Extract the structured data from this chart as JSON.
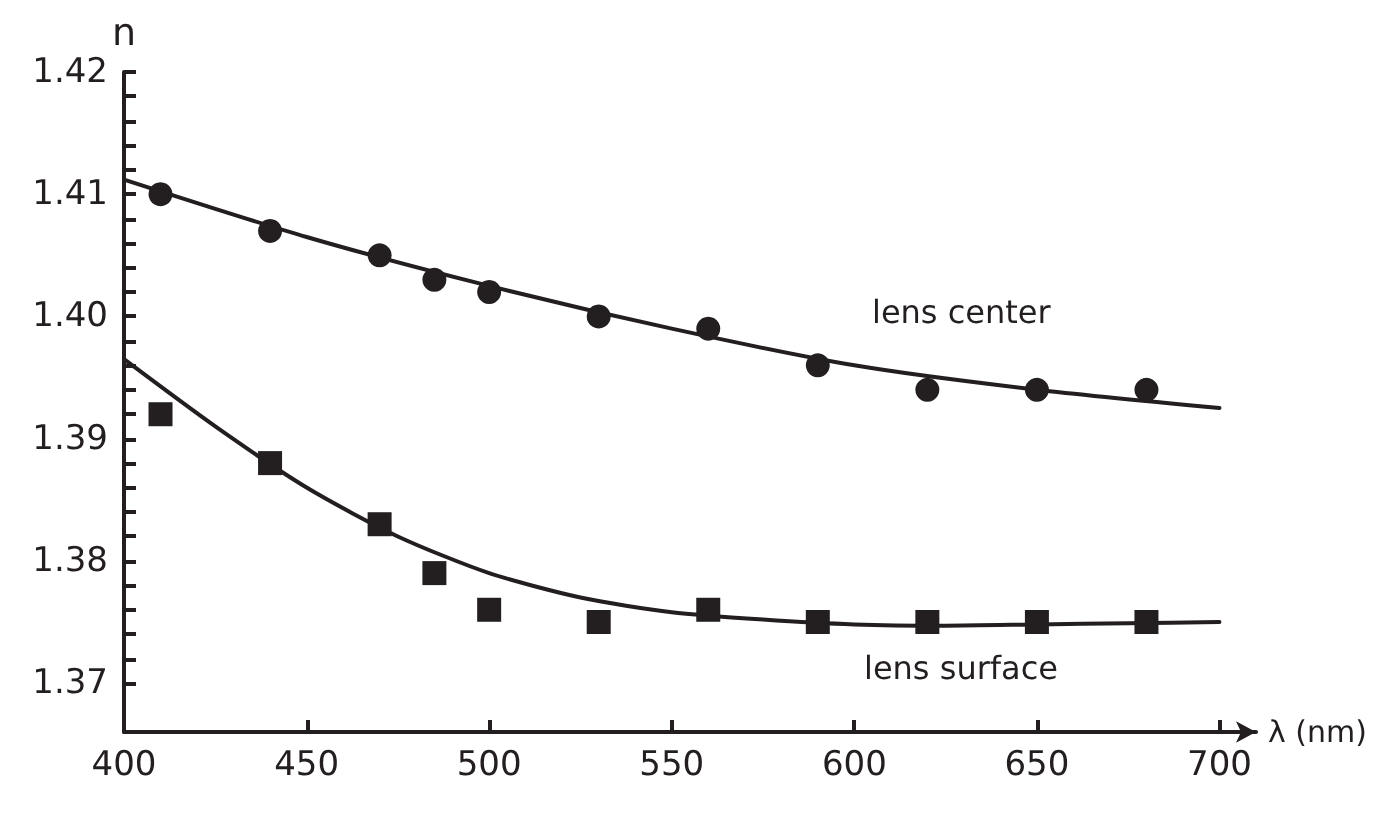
{
  "chart_data": {
    "type": "scatter",
    "xlabel": "λ (nm)",
    "ylabel": "n",
    "x": [
      410,
      440,
      470,
      485,
      500,
      530,
      560,
      590,
      620,
      650,
      680
    ],
    "series": [
      {
        "color": "#231f20",
        "marker": "circle",
        "values": [
          1.41,
          1.407,
          1.405,
          1.403,
          1.402,
          1.4,
          1.399,
          1.396,
          1.394,
          1.394,
          1.394
        ]
      },
      {
        "color": "#231f20",
        "marker": "square",
        "values": [
          1.392,
          1.388,
          1.383,
          1.379,
          1.376,
          1.375,
          1.376,
          1.375,
          1.375,
          1.375,
          1.375
        ]
      },
      {
        "type": "line",
        "color": "#231f20",
        "x": [
          400,
          450,
          500,
          550,
          600,
          650,
          700
        ],
        "values": [
          1.4112,
          1.4065,
          1.4025,
          1.399,
          1.396,
          1.394,
          1.3925
        ]
      },
      {
        "type": "line",
        "color": "#231f20",
        "x": [
          400,
          425,
          450,
          475,
          500,
          525,
          550,
          575,
          600,
          625,
          650,
          675,
          700
        ],
        "values": [
          1.3965,
          1.391,
          1.386,
          1.382,
          1.379,
          1.377,
          1.3758,
          1.3752,
          1.3748,
          1.3747,
          1.3748,
          1.3749,
          1.375
        ]
      }
    ],
    "annotations": [
      "lens center",
      "lens surface"
    ],
    "xlim": [
      400,
      710
    ],
    "xticks": [
      400,
      450,
      500,
      550,
      600,
      650,
      700
    ],
    "ylim": [
      1.366,
      1.42
    ],
    "yticks": [
      1.37,
      1.38,
      1.39,
      {
        "value": 1.4,
        "label": "1.40"
      },
      1.41,
      1.42
    ],
    "line_style": "solid",
    "grid": false
  }
}
